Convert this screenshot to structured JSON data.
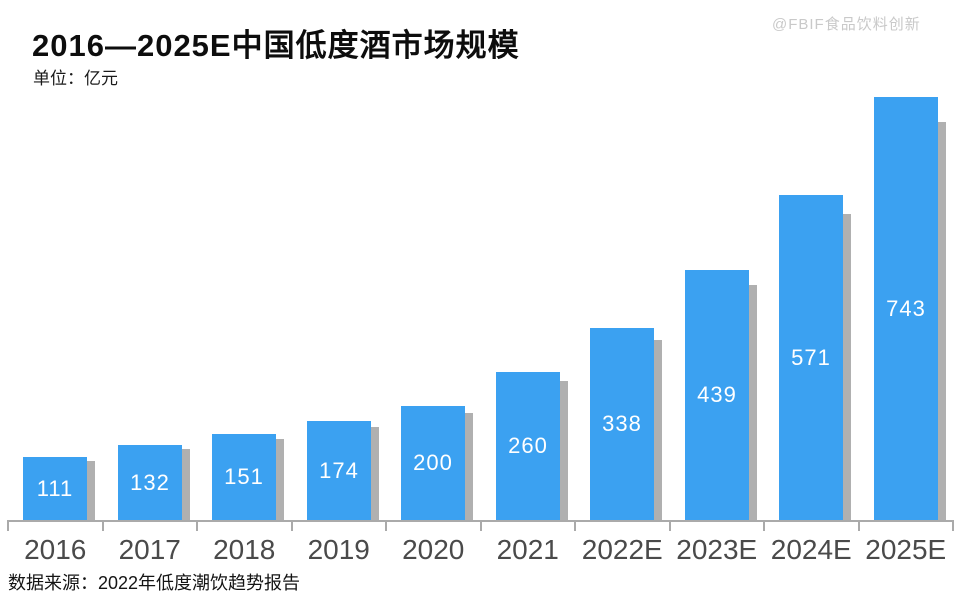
{
  "header": {
    "title": "2016—2025E中国低度酒市场规模",
    "unit_label": "单位：亿元",
    "watermark": "@FBIF食品饮料创新"
  },
  "chart_data": {
    "type": "bar",
    "title": "2016—2025E中国低度酒市场规模",
    "unit": "亿元",
    "categories": [
      "2016",
      "2017",
      "2018",
      "2019",
      "2020",
      "2021",
      "2022E",
      "2023E",
      "2024E",
      "2025E"
    ],
    "values": [
      111,
      132,
      151,
      174,
      200,
      260,
      338,
      439,
      571,
      743
    ],
    "xlabel": "",
    "ylabel": "",
    "ylim": [
      0,
      760
    ],
    "grid": false,
    "legend": "none",
    "value_labels": "inside-center",
    "bar_color": "#3BA1F1",
    "shadow_color": "#b0b0b0",
    "axis_color": "#aaaaaa",
    "value_label_color": "#ffffff",
    "tick_label_color": "#4a4a4a"
  },
  "footer": {
    "source": "数据来源：2022年低度潮饮趋势报告"
  }
}
